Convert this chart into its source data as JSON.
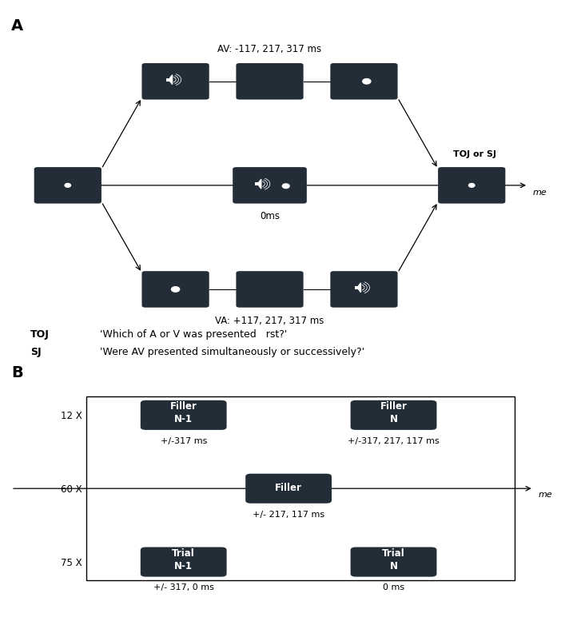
{
  "bg_color": "#ffffff",
  "box_color": "#222d38",
  "text_color_white": "#ffffff",
  "text_color_black": "#1a1a1a",
  "label_A": "A",
  "label_B": "B",
  "av_label": "AV: -117, 217, 317 ms",
  "va_label": "VA: +117, 217, 317 ms",
  "zero_label": "0ms",
  "toj_sj_label": "TOJ or SJ",
  "me_label_A": "me",
  "me_label_B": "me",
  "toj_text": "TOJ",
  "sj_text": "SJ",
  "toj_question": "'Which of A or V was presented   rst?'",
  "sj_question": "'Were AV presented simultaneously or successively?'",
  "row_labels": [
    "12 X",
    "60 X",
    "75 X"
  ],
  "box_labels_top": [
    "Filler\nN-1",
    "Filler\nN"
  ],
  "box_label_mid": "Filler",
  "box_labels_bot": [
    "Trial\nN-1",
    "Trial\nN"
  ],
  "top_sub_labels": [
    "+/-317 ms",
    "+/-317, 217, 117 ms"
  ],
  "mid_sub_label": "+/- 217, 117 ms",
  "bot_sub_labels": [
    "+/- 317, 0 ms",
    "0 ms"
  ]
}
